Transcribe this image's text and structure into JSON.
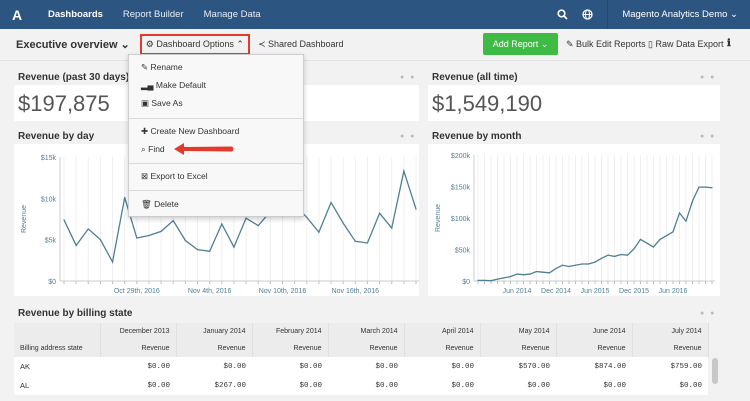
{
  "nav": {
    "logo": "A",
    "items": [
      "Dashboards",
      "Report Builder",
      "Manage Data"
    ],
    "account": "Magento Analytics Demo ⌄",
    "search_icon": "search-icon",
    "globe_icon": "globe-icon"
  },
  "toolbar": {
    "title": "Executive overview ⌄",
    "options": "⚙ Dashboard Options ⌃",
    "shared": "≺ Shared Dashboard",
    "add_report": "Add Report ⌄",
    "bulk_edit": "✎ Bulk Edit Reports",
    "raw_export": "▯ Raw Data Export",
    "info": "ℹ"
  },
  "menu": {
    "items": [
      "✎ Rename",
      "▂▄ Make Default",
      "▣ Save As",
      "✚ Create New Dashboard",
      "⌕ Find",
      "⊠ Export to Excel",
      "🗑 Delete"
    ]
  },
  "cards": {
    "rev30": {
      "title": "Revenue (past 30 days)",
      "value": "$197,875"
    },
    "revall": {
      "title": "Revenue (all time)",
      "value": "$1,549,190"
    },
    "byday": {
      "title": "Revenue by day"
    },
    "bymonth": {
      "title": "Revenue by month"
    },
    "billing": {
      "title": "Revenue by billing state"
    }
  },
  "chart_data": [
    {
      "type": "line",
      "title": "Revenue by day",
      "ylabel": "Revenue",
      "ylim": [
        0,
        15000
      ],
      "yticks": [
        "$0",
        "$5k",
        "$10k",
        "$15k"
      ],
      "xticks": [
        "Oct 29th, 2016",
        "Nov 4th, 2016",
        "Nov 10th, 2016",
        "Nov 16th, 2016"
      ],
      "xtick_index": [
        6,
        12,
        18,
        24
      ],
      "color": "#4f7f94",
      "x": [
        "2016-10-23",
        "2016-10-24",
        "2016-10-25",
        "2016-10-26",
        "2016-10-27",
        "2016-10-28",
        "2016-10-29",
        "2016-10-30",
        "2016-10-31",
        "2016-11-01",
        "2016-11-02",
        "2016-11-03",
        "2016-11-04",
        "2016-11-05",
        "2016-11-06",
        "2016-11-07",
        "2016-11-08",
        "2016-11-09",
        "2016-11-10",
        "2016-11-11",
        "2016-11-12",
        "2016-11-13",
        "2016-11-14",
        "2016-11-15",
        "2016-11-16",
        "2016-11-17",
        "2016-11-18",
        "2016-11-19",
        "2016-11-20",
        "2016-11-21"
      ],
      "values": [
        7400,
        4300,
        6300,
        5000,
        2300,
        10100,
        5200,
        5500,
        6000,
        7300,
        4900,
        3800,
        3600,
        6900,
        4100,
        7600,
        6700,
        8400,
        7800,
        9200,
        7700,
        5900,
        9500,
        7000,
        4800,
        4600,
        8200,
        6400,
        13300,
        8700
      ]
    },
    {
      "type": "line",
      "title": "Revenue by month",
      "ylabel": "Revenue",
      "ylim": [
        0,
        200000
      ],
      "yticks": [
        "$0",
        "$50k",
        "$100k",
        "$150k",
        "$200k"
      ],
      "xticks": [
        "Jun 2014",
        "Dec 2014",
        "Jun 2015",
        "Dec 2015",
        "Jun 2016"
      ],
      "xtick_index": [
        6,
        12,
        18,
        24,
        30
      ],
      "color": "#4f7f94",
      "x": [
        "2013-12",
        "2014-01",
        "2014-02",
        "2014-03",
        "2014-04",
        "2014-05",
        "2014-06",
        "2014-07",
        "2014-08",
        "2014-09",
        "2014-10",
        "2014-11",
        "2014-12",
        "2015-01",
        "2015-02",
        "2015-03",
        "2015-04",
        "2015-05",
        "2015-06",
        "2015-07",
        "2015-08",
        "2015-09",
        "2015-10",
        "2015-11",
        "2015-12",
        "2016-01",
        "2016-02",
        "2016-03",
        "2016-04",
        "2016-05",
        "2016-06",
        "2016-07",
        "2016-08",
        "2016-09",
        "2016-10",
        "2016-11",
        "2016-12"
      ],
      "values": [
        1000,
        1000,
        500,
        3000,
        5000,
        7000,
        11000,
        10000,
        11000,
        15000,
        14000,
        13000,
        20000,
        25000,
        23000,
        25000,
        27000,
        27000,
        30000,
        36000,
        41000,
        39000,
        42000,
        41000,
        51000,
        66000,
        60000,
        54000,
        66000,
        72000,
        78000,
        108000,
        95000,
        127000,
        149000,
        149000,
        148000
      ]
    }
  ],
  "table": {
    "group_headers": [
      "December 2013",
      "January 2014",
      "February 2014",
      "March 2014",
      "April 2014",
      "May 2014",
      "June 2014",
      "July 2014"
    ],
    "state_header": "Billing address state",
    "metric": "Revenue",
    "rows": [
      [
        "AK",
        "$0.00",
        "$0.00",
        "$0.00",
        "$0.00",
        "$0.00",
        "$570.00",
        "$874.00",
        "$759.00"
      ],
      [
        "AL",
        "$0.00",
        "$267.00",
        "$0.00",
        "$0.00",
        "$0.00",
        "$0.00",
        "$0.00",
        "$0.00"
      ]
    ]
  }
}
